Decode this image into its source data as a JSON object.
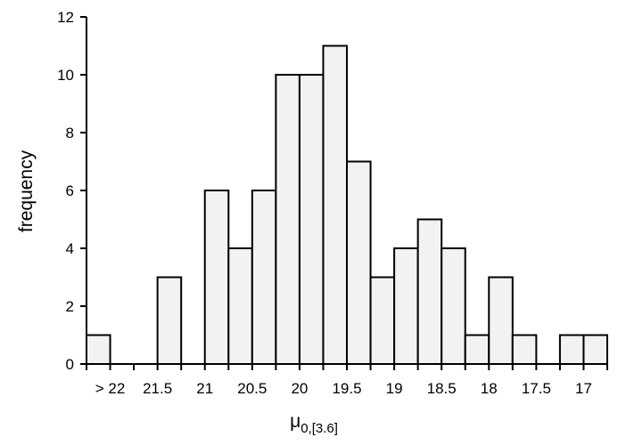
{
  "chart_data": {
    "type": "bar",
    "xlabel_main": "μ",
    "xlabel_sub": "0,[3.6]",
    "ylabel": "frequency",
    "ylim": [
      0,
      12
    ],
    "yticks": [
      0,
      2,
      4,
      6,
      8,
      10,
      12
    ],
    "x_tick_labels": [
      "> 22",
      "21.5",
      "21",
      "20.5",
      "20",
      "19.5",
      "19",
      "18.5",
      "18",
      "17.5",
      "17"
    ],
    "values": [
      1,
      0,
      0,
      3,
      0,
      6,
      4,
      6,
      10,
      10,
      11,
      7,
      3,
      4,
      5,
      4,
      1,
      3,
      1,
      0,
      1,
      1
    ],
    "grid": false,
    "legend": "none"
  }
}
